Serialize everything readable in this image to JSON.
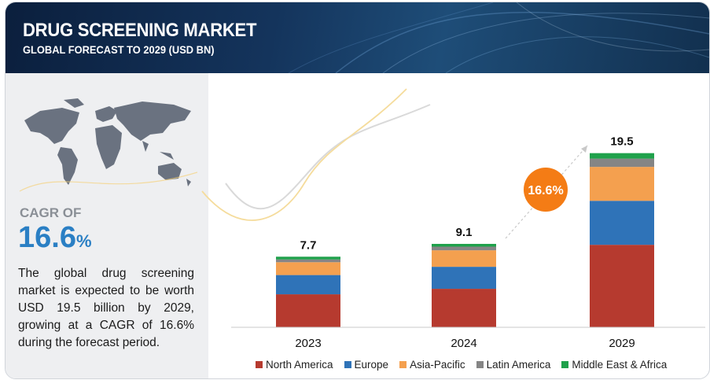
{
  "header": {
    "title": "DRUG SCREENING MARKET",
    "subtitle": "GLOBAL FORECAST TO 2029 (USD BN)"
  },
  "left_panel": {
    "cagr_label": "CAGR OF",
    "cagr_number": "16.6",
    "cagr_percent_sign": "%",
    "description": "The global drug screening market is expected to be worth USD 19.5 billion by 2029, growing at a CAGR of 16.6% during the forecast period."
  },
  "colors": {
    "North America": "#b63a2f",
    "Europe": "#2f73b8",
    "Asia-Pacific": "#f4a04f",
    "Latin America": "#858585",
    "Middle East & Africa": "#1fa14b",
    "cagr_bubble": "#f47c15",
    "cagr_text": "#2a7fc4"
  },
  "chart_data": {
    "type": "bar",
    "stacked": true,
    "categories": [
      "2023",
      "2024",
      "2029"
    ],
    "totals": [
      "7.7",
      "9.1",
      "19.5"
    ],
    "series": [
      {
        "name": "North America",
        "values": [
          3.6,
          4.2,
          9.0
        ]
      },
      {
        "name": "Europe",
        "values": [
          2.1,
          2.4,
          4.8
        ]
      },
      {
        "name": "Asia-Pacific",
        "values": [
          1.4,
          1.8,
          3.7
        ]
      },
      {
        "name": "Latin America",
        "values": [
          0.3,
          0.4,
          0.9
        ]
      },
      {
        "name": "Middle East & Africa",
        "values": [
          0.3,
          0.3,
          0.6
        ]
      }
    ],
    "ylim": [
      0,
      20
    ],
    "cagr_callout": "16.6%",
    "legend_position": "bottom",
    "grid": false
  }
}
